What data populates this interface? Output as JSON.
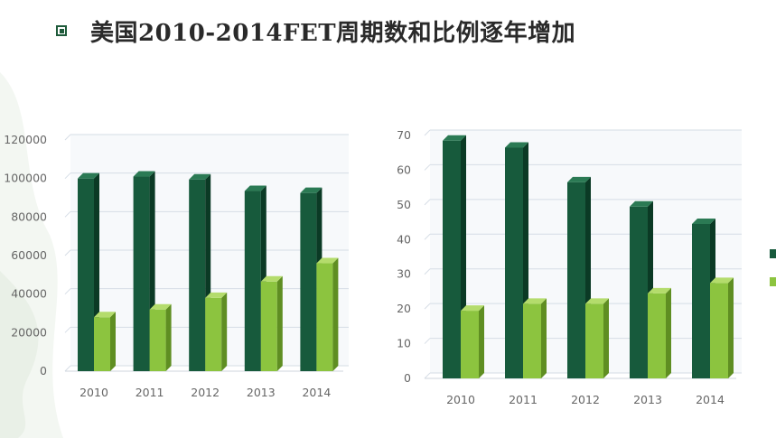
{
  "title": "美国2010-2014FET周期数和比例逐年增加",
  "colors": {
    "series1_front": "#175a3c",
    "series1_side": "#0b3a25",
    "series1_top": "#2b7a54",
    "series2_front": "#8cc43f",
    "series2_side": "#5f8e22",
    "series2_top": "#b4dc6c",
    "bullet": "#1e5a3a"
  },
  "legend_swatches": [
    "series1",
    "series2"
  ],
  "chart_data": [
    {
      "type": "bar",
      "categories": [
        "2010",
        "2011",
        "2012",
        "2013",
        "2014"
      ],
      "yticks": [
        "0",
        "20000",
        "40000",
        "60000",
        "80000",
        "100000",
        "120000"
      ],
      "ylim": [
        0,
        120000
      ],
      "grid": true,
      "series": [
        {
          "values": [
            100000,
            101000,
            99500,
            93500,
            92500
          ]
        },
        {
          "values": [
            28000,
            32000,
            38000,
            46500,
            56000
          ]
        }
      ]
    },
    {
      "type": "bar",
      "categories": [
        "2010",
        "2011",
        "2012",
        "2013",
        "2014"
      ],
      "yticks": [
        "0",
        "10",
        "20",
        "30",
        "40",
        "50",
        "60",
        "70"
      ],
      "ylim": [
        0,
        70
      ],
      "grid": true,
      "series": [
        {
          "values": [
            68.5,
            66.5,
            56.5,
            49.5,
            44.5
          ]
        },
        {
          "values": [
            19.5,
            21.5,
            21.5,
            24.5,
            27.5
          ]
        }
      ]
    }
  ]
}
